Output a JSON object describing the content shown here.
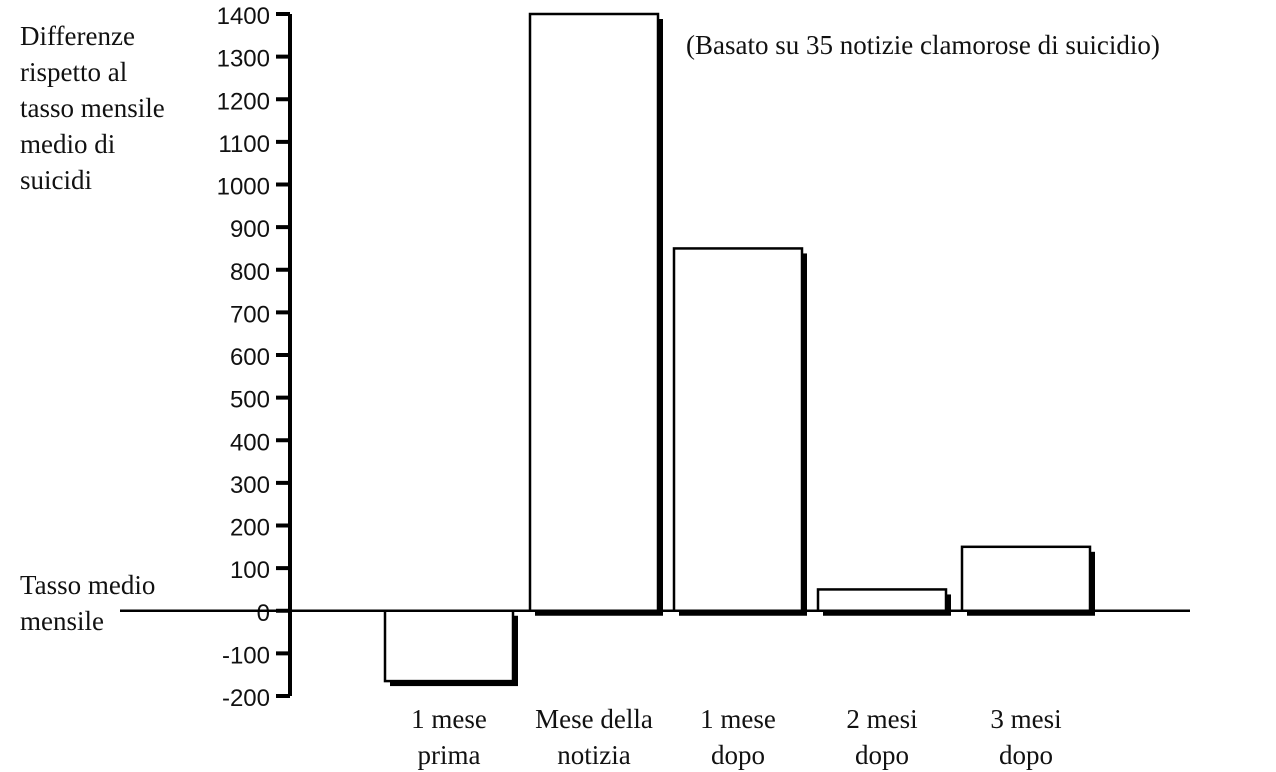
{
  "chart_data": {
    "type": "bar",
    "note": "(Basato su 35 notizie clamorose di suicidio)",
    "ylabel_lines": [
      "Differenze",
      "rispetto al",
      "tasso mensile",
      "medio di",
      "suicidi"
    ],
    "baseline_label_lines": [
      "Tasso medio",
      "mensile"
    ],
    "ylim": [
      -200,
      1400
    ],
    "yticks": [
      "1400",
      "1300",
      "1200",
      "1100",
      "1000",
      "900",
      "800",
      "700",
      "600",
      "500",
      "400",
      "300",
      "200",
      "100",
      "0",
      "-100",
      "-200"
    ],
    "categories": [
      [
        "1 mese",
        "prima"
      ],
      [
        "Mese della",
        "notizia"
      ],
      [
        "1 mese",
        "dopo"
      ],
      [
        "2 mesi",
        "dopo"
      ],
      [
        "3 mesi",
        "dopo"
      ]
    ],
    "values": [
      -165,
      1400,
      850,
      50,
      150
    ],
    "grid": false,
    "legend": "none"
  }
}
